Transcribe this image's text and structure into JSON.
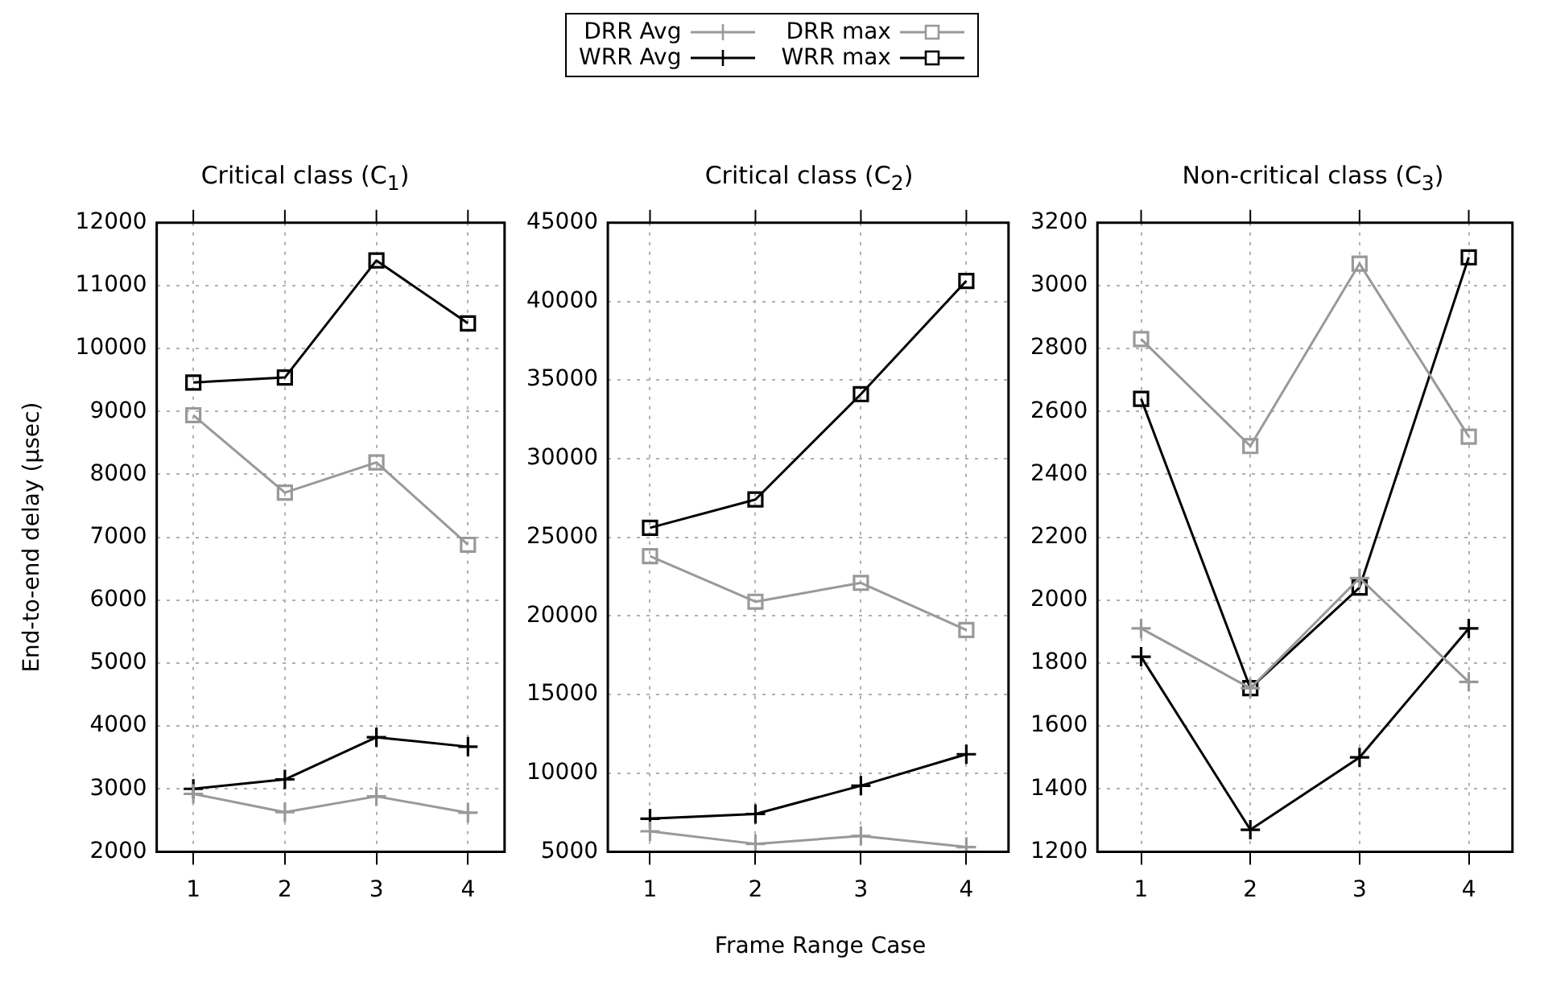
{
  "chart_data": [
    {
      "type": "line",
      "title": "Critical class (C$_{1}$)",
      "ylabel": "End-to-end delay (μsec)",
      "x": [
        1,
        2,
        3,
        4
      ],
      "xlim": [
        0.6,
        4.4
      ],
      "xticks": [
        1,
        2,
        3,
        4
      ],
      "ylim": [
        2000,
        12000
      ],
      "yticks": [
        2000,
        3000,
        4000,
        5000,
        6000,
        7000,
        8000,
        9000,
        10000,
        11000,
        12000
      ],
      "grid": true,
      "legend": "top",
      "series": [
        {
          "name": "DRR Avg",
          "color": "#999999",
          "marker": "cross",
          "values": [
            2920,
            2630,
            2880,
            2620
          ]
        },
        {
          "name": "DRR max",
          "color": "#999999",
          "marker": "square",
          "values": [
            8940,
            7710,
            8190,
            6880
          ]
        },
        {
          "name": "WRR Avg",
          "color": "#000000",
          "marker": "cross",
          "values": [
            3000,
            3150,
            3820,
            3670
          ]
        },
        {
          "name": "WRR max",
          "color": "#000000",
          "marker": "square",
          "values": [
            9460,
            9540,
            11400,
            10400
          ]
        }
      ]
    },
    {
      "type": "line",
      "title": "Critical class (C$_{2}$)",
      "xlabel": "Frame Range Case",
      "x": [
        1,
        2,
        3,
        4
      ],
      "xlim": [
        0.6,
        4.4
      ],
      "xticks": [
        1,
        2,
        3,
        4
      ],
      "ylim": [
        5000,
        45000
      ],
      "yticks": [
        5000,
        10000,
        15000,
        20000,
        25000,
        30000,
        35000,
        40000,
        45000
      ],
      "grid": true,
      "series": [
        {
          "color": "#999999",
          "marker": "cross",
          "values": [
            6300,
            5500,
            6000,
            5300
          ]
        },
        {
          "color": "#999999",
          "marker": "square",
          "values": [
            23800,
            20900,
            22100,
            19100
          ]
        },
        {
          "color": "#000000",
          "marker": "cross",
          "values": [
            7100,
            7400,
            9200,
            11200
          ]
        },
        {
          "color": "#000000",
          "marker": "square",
          "values": [
            25600,
            27400,
            34100,
            41300
          ]
        }
      ]
    },
    {
      "type": "line",
      "title": "Non-critical class (C$_{3}$)",
      "x": [
        1,
        2,
        3,
        4
      ],
      "xlim": [
        0.6,
        4.4
      ],
      "xticks": [
        1,
        2,
        3,
        4
      ],
      "ylim": [
        1200,
        3200
      ],
      "yticks": [
        1200,
        1400,
        1600,
        1800,
        2000,
        2200,
        2400,
        2600,
        2800,
        3000,
        3200
      ],
      "grid": true,
      "series": [
        {
          "color": "#999999",
          "marker": "cross",
          "values": [
            1910,
            1720,
            2070,
            1740
          ]
        },
        {
          "color": "#999999",
          "marker": "square",
          "values": [
            2830,
            2490,
            3070,
            2520
          ]
        },
        {
          "color": "#000000",
          "marker": "cross",
          "values": [
            1820,
            1270,
            1500,
            1910
          ]
        },
        {
          "color": "#000000",
          "marker": "square",
          "values": [
            2640,
            1720,
            2040,
            3090
          ]
        }
      ]
    }
  ]
}
